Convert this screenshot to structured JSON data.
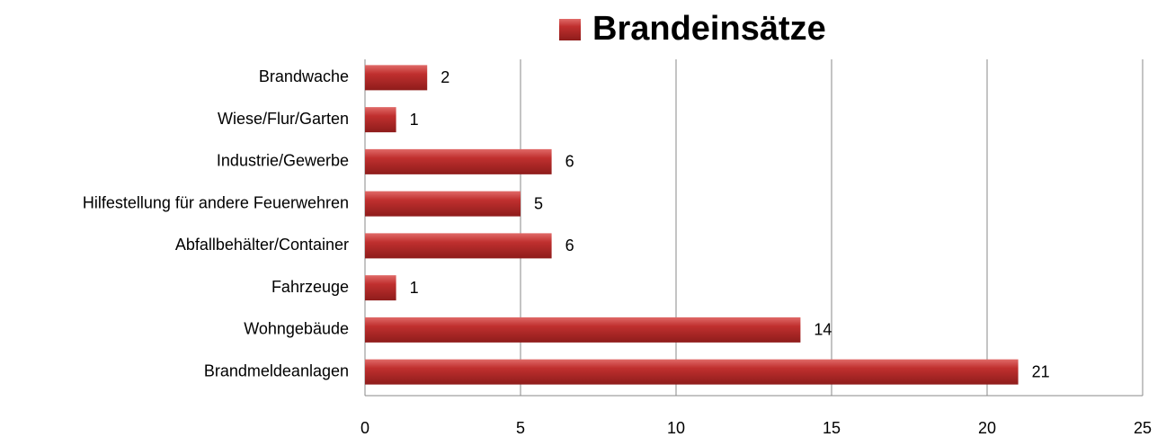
{
  "chart_data": {
    "type": "bar",
    "orientation": "horizontal",
    "categories": [
      "Brandwache",
      "Wiese/Flur/Garten",
      "Industrie/Gewerbe",
      "Hilfestellung für andere Feuerwehren",
      "Abfallbehälter/Container",
      "Fahrzeuge",
      "Wohngebäude",
      "Brandmeldeanlagen"
    ],
    "series": [
      {
        "name": "Brandeinsätze",
        "color": "#c0302f",
        "values": [
          2,
          1,
          6,
          5,
          6,
          1,
          14,
          21
        ]
      }
    ],
    "xlim": [
      0,
      25
    ],
    "xticks": [
      0,
      5,
      10,
      15,
      20,
      25
    ],
    "grid": true,
    "legend": "top"
  }
}
